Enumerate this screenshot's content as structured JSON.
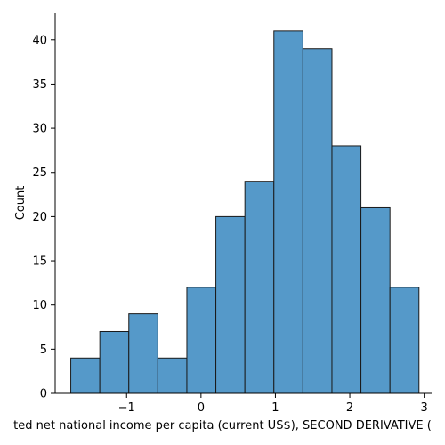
{
  "chart_data": {
    "type": "bar",
    "subtype": "histogram",
    "xlabel": "ted net national income per capita (current US$), SECOND DERIVATIVE (",
    "ylabel": "Count",
    "bin_edges": [
      -1.75,
      -1.36,
      -0.97,
      -0.58,
      -0.19,
      0.2,
      0.59,
      0.98,
      1.37,
      1.76,
      2.15,
      2.54,
      2.93
    ],
    "values": [
      4,
      7,
      9,
      4,
      12,
      20,
      24,
      41,
      39,
      28,
      21,
      12
    ],
    "xlim": [
      -1.96,
      3.1
    ],
    "ylim": [
      0,
      43
    ],
    "xticks": [
      -1,
      0,
      1,
      2,
      3
    ],
    "xtick_labels": [
      "−1",
      "0",
      "1",
      "2",
      "3"
    ],
    "yticks": [
      0,
      5,
      10,
      15,
      20,
      25,
      30,
      35,
      40
    ],
    "ytick_labels": [
      "0",
      "5",
      "10",
      "15",
      "20",
      "25",
      "30",
      "35",
      "40"
    ],
    "grid": false,
    "bar_color": "#5599c9",
    "edge_color": "#1a1a1a"
  }
}
